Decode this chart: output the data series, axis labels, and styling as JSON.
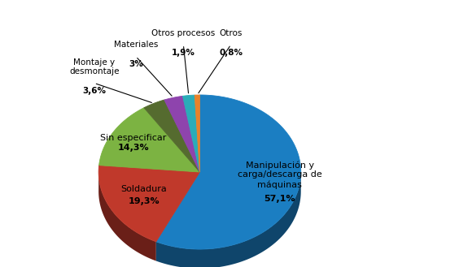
{
  "label_names": [
    "Manipulación y\ncarga/descarga de\nmáquinas",
    "Soldadura",
    "Sin especificar",
    "Montaje y\ndesmontaje",
    "Materiales",
    "Otros procesos",
    "Otros"
  ],
  "pct_labels": [
    "57,1%",
    "19,3%",
    "14,3%",
    "3,6%",
    "3%",
    "1,9%",
    "0,8%"
  ],
  "values": [
    57.1,
    19.3,
    14.3,
    3.6,
    3.0,
    1.9,
    0.8
  ],
  "colors": [
    "#1B7EC2",
    "#C0392B",
    "#7CB342",
    "#7CB342",
    "#8E44AD",
    "#2AACB8",
    "#E67E22",
    "#A9BCD0"
  ],
  "slice_colors": [
    "#1B7EC2",
    "#C0392B",
    "#7CB342",
    "#7B8B6F",
    "#8E44AD",
    "#2AACB8",
    "#E67E22",
    "#A9BCD0"
  ],
  "background": "#FFFFFF",
  "startangle": 90
}
